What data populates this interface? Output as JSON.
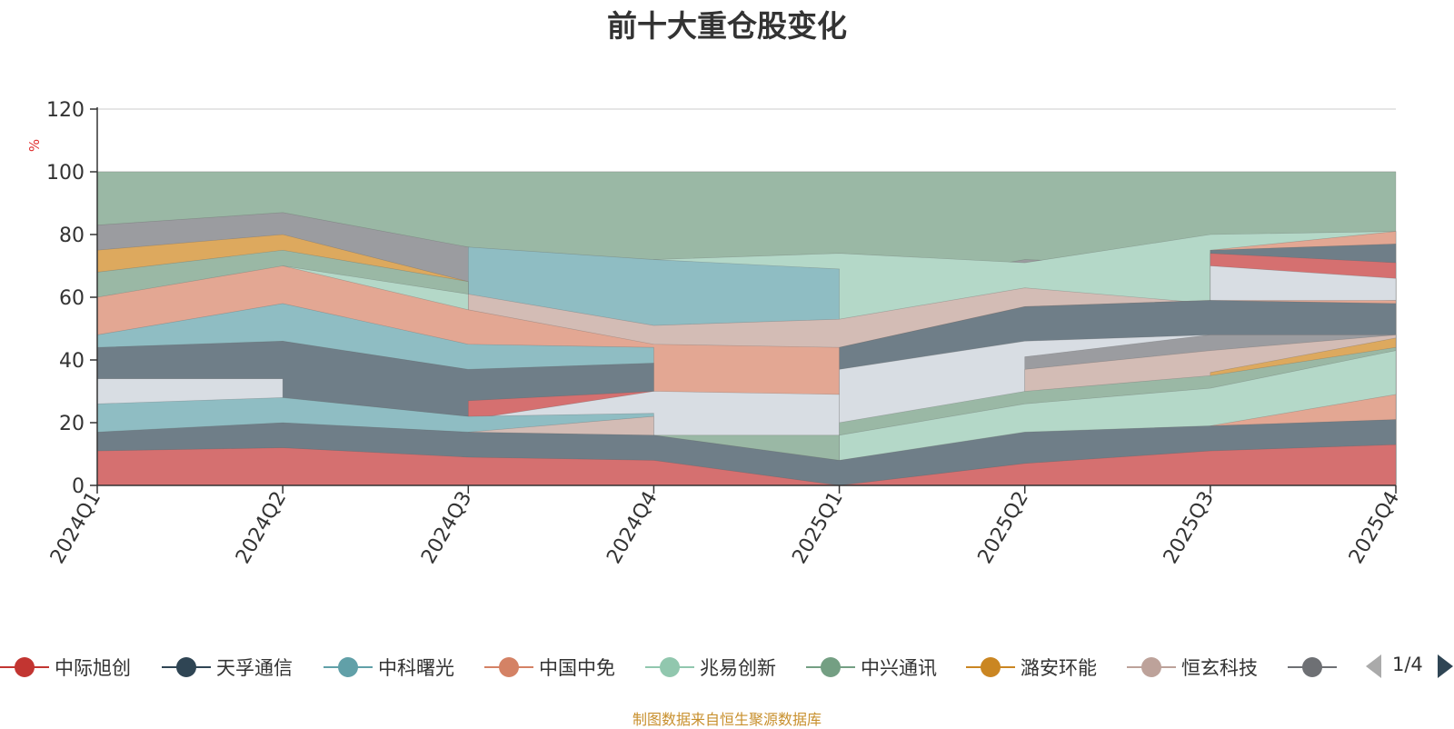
{
  "title": "前十大重仓股变化",
  "y_unit": "%",
  "source_note": "制图数据来自恒生聚源数据库",
  "legend": {
    "items": [
      {
        "label": "中际旭创",
        "color": "#c23531"
      },
      {
        "label": "天孚通信",
        "color": "#2f4554"
      },
      {
        "label": "中科曙光",
        "color": "#61a0a8"
      },
      {
        "label": "中国中免",
        "color": "#d48265"
      },
      {
        "label": "兆易创新",
        "color": "#91c7ae"
      },
      {
        "label": "中兴通讯",
        "color": "#749f83"
      },
      {
        "label": "潞安环能",
        "color": "#ca8622"
      },
      {
        "label": "恒玄科技",
        "color": "#bda29a"
      },
      {
        "label": "",
        "color": "#6e7074"
      }
    ],
    "page_label": "1/4"
  },
  "chart_data": {
    "type": "area",
    "title": "前十大重仓股变化",
    "ylabel": "%",
    "ylim": [
      0,
      120
    ],
    "yticks": [
      0,
      20,
      40,
      60,
      80,
      100,
      120
    ],
    "categories": [
      "2024Q1",
      "2024Q2",
      "2024Q3",
      "2024Q4",
      "2025Q1",
      "2025Q2",
      "2025Q3",
      "2025Q4"
    ],
    "grid": true,
    "series": [
      {
        "name": "",
        "color": "#9ab8a5",
        "values": [
          100,
          100,
          100,
          100,
          100,
          100,
          100,
          100
        ]
      },
      {
        "name": "",
        "color": "#9b9ca0",
        "values": [
          83,
          87,
          76,
          65,
          62,
          72,
          70,
          66
        ]
      },
      {
        "name": "",
        "color": "#b4d8c8",
        "values": [
          null,
          null,
          null,
          72,
          74,
          71,
          80,
          81
        ]
      },
      {
        "name": "",
        "color": "#e3a793",
        "values": [
          null,
          null,
          null,
          null,
          null,
          null,
          75,
          81
        ]
      },
      {
        "name": "",
        "color": "#8fbdc3",
        "values": [
          null,
          null,
          76,
          72,
          69,
          null,
          null,
          null
        ]
      },
      {
        "name": "",
        "color": "#6f7e88",
        "values": [
          null,
          null,
          null,
          null,
          null,
          null,
          75,
          77
        ]
      },
      {
        "name": "",
        "color": "#d57070",
        "values": [
          null,
          null,
          null,
          null,
          null,
          null,
          74,
          71
        ]
      },
      {
        "name": "",
        "color": "#d8dde3",
        "values": [
          null,
          null,
          null,
          null,
          null,
          null,
          70,
          66
        ]
      },
      {
        "name": "",
        "color": "#dda95e",
        "values": [
          75,
          80,
          65,
          null,
          null,
          null,
          null,
          null
        ]
      },
      {
        "name": "",
        "color": "#9ab8a5",
        "values": [
          68,
          75,
          65,
          null,
          null,
          null,
          null,
          null
        ]
      },
      {
        "name": "",
        "color": "#b4d8c8",
        "values": [
          null,
          70,
          61,
          null,
          null,
          null,
          null,
          null
        ]
      },
      {
        "name": "",
        "color": "#d3bcb5",
        "values": [
          null,
          null,
          61,
          51,
          53,
          63,
          58,
          59
        ]
      },
      {
        "name": "",
        "color": "#e3a793",
        "values": [
          60,
          70,
          56,
          45,
          44,
          57,
          59,
          59
        ]
      },
      {
        "name": "",
        "color": "#6f7e88",
        "values": [
          null,
          null,
          null,
          null,
          44,
          57,
          59,
          58
        ]
      },
      {
        "name": "",
        "color": "#8fbdc3",
        "values": [
          48,
          58,
          45,
          44,
          null,
          null,
          null,
          null
        ]
      },
      {
        "name": "",
        "color": "#6f7e88",
        "values": [
          44,
          46,
          37,
          39,
          null,
          null,
          null,
          null
        ]
      },
      {
        "name": "",
        "color": "#d8dde3",
        "values": [
          34,
          34,
          null,
          null,
          37,
          46,
          48,
          48
        ]
      },
      {
        "name": "",
        "color": "#d57070",
        "values": [
          null,
          null,
          27,
          30,
          null,
          null,
          null,
          null
        ]
      },
      {
        "name": "",
        "color": "#9b9ca0",
        "values": [
          null,
          null,
          null,
          null,
          null,
          41,
          48,
          48
        ]
      },
      {
        "name": "",
        "color": "#d8dde3",
        "values": [
          null,
          null,
          21,
          30,
          29,
          null,
          null,
          null
        ]
      },
      {
        "name": "",
        "color": "#d3bcb5",
        "values": [
          null,
          null,
          null,
          null,
          null,
          37,
          43,
          48
        ]
      },
      {
        "name": "",
        "color": "#dda95e",
        "values": [
          null,
          null,
          null,
          null,
          null,
          null,
          36,
          47
        ]
      },
      {
        "name": "",
        "color": "#8fbdc3",
        "values": [
          26,
          28,
          22,
          23,
          null,
          null,
          null,
          null
        ]
      },
      {
        "name": "",
        "color": "#9ab8a5",
        "values": [
          null,
          null,
          null,
          null,
          20,
          30,
          35,
          44
        ]
      },
      {
        "name": "",
        "color": "#b4d8c8",
        "values": [
          null,
          null,
          null,
          null,
          16,
          26,
          31,
          43
        ]
      },
      {
        "name": "",
        "color": "#d3bcb5",
        "values": [
          null,
          null,
          17,
          22,
          null,
          null,
          null,
          null
        ]
      },
      {
        "name": "",
        "color": "#9ab8a5",
        "values": [
          null,
          null,
          null,
          16,
          16,
          null,
          null,
          null
        ]
      },
      {
        "name": "",
        "color": "#e3a793",
        "values": [
          null,
          null,
          null,
          null,
          null,
          null,
          19,
          29
        ]
      },
      {
        "name": "",
        "color": "#6f7e88",
        "values": [
          17,
          20,
          17,
          16,
          8,
          17,
          19,
          21
        ]
      },
      {
        "name": "",
        "color": "#d57070",
        "values": [
          11,
          12,
          9,
          8,
          0,
          7,
          11,
          13
        ]
      }
    ]
  }
}
